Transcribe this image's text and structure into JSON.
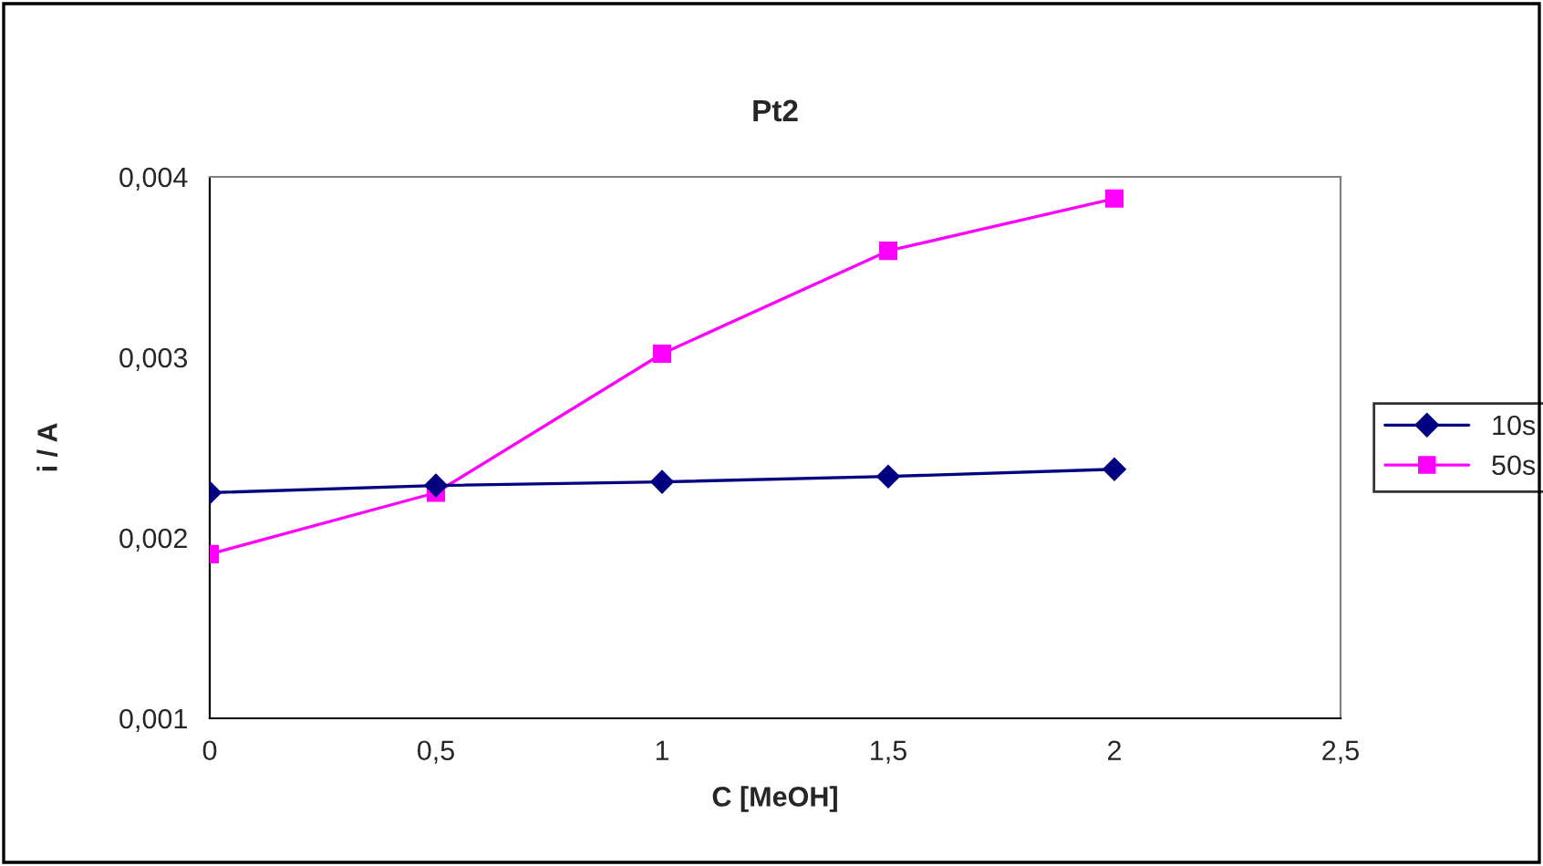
{
  "chart_data": {
    "type": "line",
    "title": "Pt2",
    "xlabel": "C [MeOH]",
    "ylabel": "i / A",
    "x": [
      0,
      0.5,
      1,
      1.5,
      2
    ],
    "series": [
      {
        "name": "10s",
        "color": "#000080",
        "marker": "diamond",
        "values": [
          0.00225,
          0.00229,
          0.00231,
          0.00234,
          0.00238
        ]
      },
      {
        "name": "50s",
        "color": "#ff00ff",
        "marker": "square",
        "values": [
          0.00191,
          0.00225,
          0.00302,
          0.00359,
          0.00388
        ]
      }
    ],
    "xlim": [
      0,
      2.5
    ],
    "xticks": [
      0,
      {
        "value": 0.5,
        "label": "0,5"
      },
      1,
      {
        "value": 1.5,
        "label": "1,5"
      },
      2,
      {
        "value": 2.5,
        "label": "2,5"
      }
    ],
    "ylim": [
      0.001,
      0.004
    ],
    "yticks": [
      {
        "value": 0.001,
        "label": "0,001"
      },
      {
        "value": 0.002,
        "label": "0,002"
      },
      {
        "value": 0.003,
        "label": "0,003"
      },
      {
        "value": 0.004,
        "label": "0,004"
      }
    ],
    "grid": false,
    "legend": "right"
  }
}
